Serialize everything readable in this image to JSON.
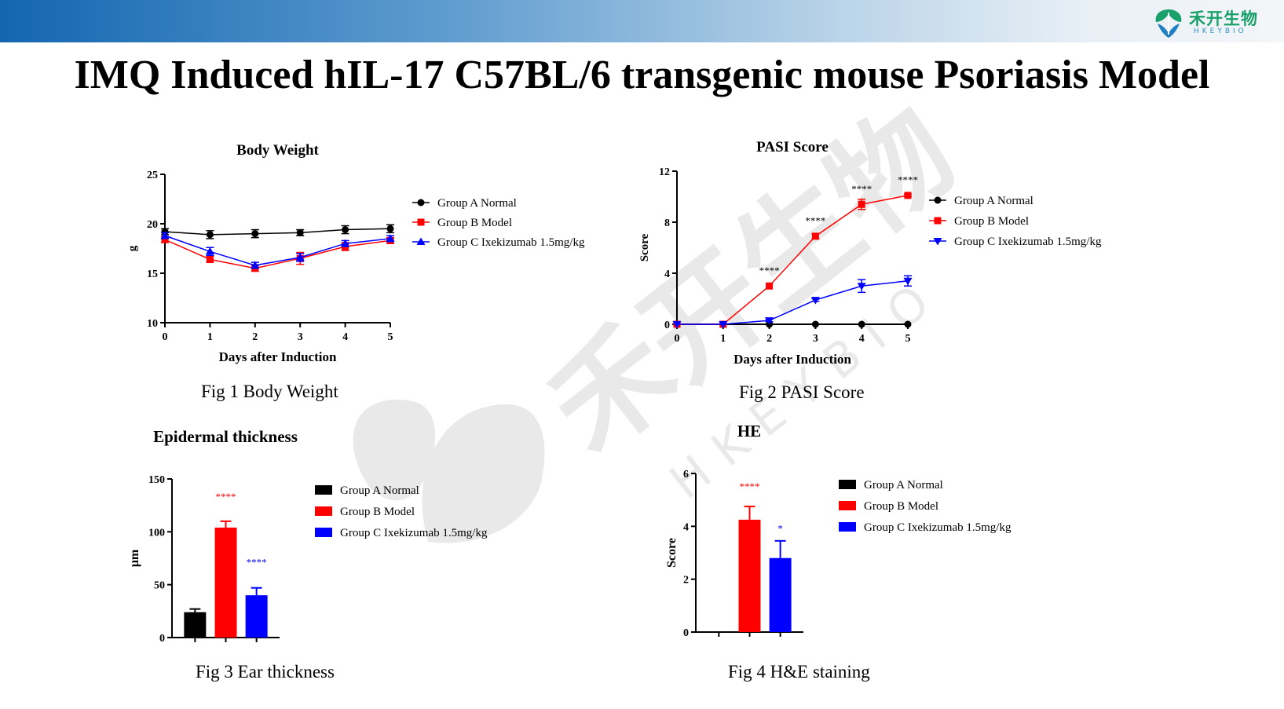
{
  "header": {
    "title": "IMQ Induced hIL-17 C57BL/6 transgenic mouse Psoriasis Model",
    "logo_name": "禾开生物",
    "logo_sub": "HKEYBIO",
    "logo_icon": "leaf-logo-icon",
    "bar_color_start": "#1366b0",
    "bar_color_end": "#f4f6f8"
  },
  "watermark": {
    "text": "禾开生物",
    "sub": "HKEYBIO"
  },
  "captions": {
    "fig1": "Fig 1 Body Weight",
    "fig2": "Fig 2  PASI Score",
    "fig3": "Fig 3 Ear thickness",
    "fig4": "Fig 4 H&E staining"
  },
  "colors": {
    "groupA": "#000000",
    "groupB": "#ff0000",
    "groupC": "#0000ff"
  },
  "chart_data": [
    {
      "type": "line",
      "title": "Body Weight",
      "xlabel": "Days after Induction",
      "ylabel": "g",
      "x": [
        0,
        1,
        2,
        3,
        4,
        5
      ],
      "xlim": [
        0,
        5
      ],
      "ylim": [
        10,
        25
      ],
      "xticks": [
        "0",
        "1",
        "2",
        "3",
        "4",
        "5"
      ],
      "yticks": [
        "10",
        "15",
        "20",
        "25"
      ],
      "grid": false,
      "legend": "right",
      "series": [
        {
          "name": "Group A Normal",
          "marker": "circle",
          "color": "#000000",
          "values": [
            19.2,
            18.9,
            19.0,
            19.1,
            19.4,
            19.5
          ],
          "errors": [
            0.3,
            0.4,
            0.4,
            0.3,
            0.4,
            0.4
          ]
        },
        {
          "name": "Group B Model",
          "marker": "square",
          "color": "#ff0000",
          "values": [
            18.4,
            16.4,
            15.5,
            16.5,
            17.7,
            18.3
          ],
          "errors": [
            0.3,
            0.3,
            0.3,
            0.6,
            0.4,
            0.3
          ]
        },
        {
          "name": "Group C Ixekizumab 1.5mg/kg",
          "marker": "triangle",
          "color": "#0000ff",
          "values": [
            18.8,
            17.2,
            15.8,
            16.6,
            18.0,
            18.5
          ],
          "errors": [
            0.3,
            0.4,
            0.3,
            0.4,
            0.3,
            0.3
          ]
        }
      ]
    },
    {
      "type": "line",
      "title": "PASI Score",
      "xlabel": "Days after Induction",
      "ylabel": "Score",
      "x": [
        0,
        1,
        2,
        3,
        4,
        5
      ],
      "xlim": [
        0,
        5
      ],
      "ylim": [
        0,
        12
      ],
      "xticks": [
        "0",
        "1",
        "2",
        "3",
        "4",
        "5"
      ],
      "yticks": [
        "0",
        "4",
        "8",
        "12"
      ],
      "grid": false,
      "legend": "right",
      "series": [
        {
          "name": "Group A Normal",
          "marker": "circle",
          "color": "#000000",
          "values": [
            0,
            0,
            0,
            0,
            0,
            0
          ],
          "errors": [
            0,
            0,
            0,
            0,
            0,
            0
          ]
        },
        {
          "name": "Group B Model",
          "marker": "square",
          "color": "#ff0000",
          "values": [
            0,
            0,
            3.0,
            6.9,
            9.4,
            10.1
          ],
          "errors": [
            0,
            0,
            0,
            0.2,
            0.4,
            0.1
          ]
        },
        {
          "name": "Group C Ixekizumab 1.5mg/kg",
          "marker": "triangle-down",
          "color": "#0000ff",
          "values": [
            0,
            0,
            0.3,
            1.9,
            3.0,
            3.4
          ],
          "errors": [
            0,
            0,
            0.1,
            0.1,
            0.5,
            0.4
          ]
        }
      ],
      "annotations": [
        {
          "x": 2,
          "y": 4.2,
          "text": "****"
        },
        {
          "x": 3,
          "y": 8.1,
          "text": "****"
        },
        {
          "x": 4,
          "y": 10.6,
          "text": "****"
        },
        {
          "x": 5,
          "y": 11.3,
          "text": "****"
        }
      ]
    },
    {
      "type": "bar",
      "title": "Epidermal thickness",
      "xlabel": "",
      "ylabel": "µm",
      "categories": [
        "Group A Normal",
        "Group B Model",
        "Group C Ixekizumab 1.5mg/kg"
      ],
      "values": [
        24,
        104,
        40
      ],
      "errors": [
        3,
        6,
        7
      ],
      "colors": [
        "#000000",
        "#ff0000",
        "#0000ff"
      ],
      "ylim": [
        0,
        150
      ],
      "yticks": [
        "0",
        "50",
        "100",
        "150"
      ],
      "legend": "right",
      "annotations": [
        {
          "category": 1,
          "text": "****",
          "color": "#ff0000",
          "y": 133
        },
        {
          "category": 2,
          "text": "****",
          "color": "#0000ff",
          "y": 71
        }
      ]
    },
    {
      "type": "bar",
      "title": "HE",
      "xlabel": "",
      "ylabel": "Score",
      "categories": [
        "Group A Normal",
        "Group B Model",
        "Group C Ixekizumab 1.5mg/kg"
      ],
      "values": [
        0,
        4.25,
        2.8
      ],
      "errors": [
        0,
        0.5,
        0.65
      ],
      "colors": [
        "#000000",
        "#ff0000",
        "#0000ff"
      ],
      "ylim": [
        0,
        6
      ],
      "yticks": [
        "0",
        "2",
        "4",
        "6"
      ],
      "legend": "right",
      "annotations": [
        {
          "category": 1,
          "text": "****",
          "color": "#ff0000",
          "y": 5.5
        },
        {
          "category": 2,
          "text": "*",
          "color": "#0000ff",
          "y": 3.9
        }
      ]
    }
  ]
}
